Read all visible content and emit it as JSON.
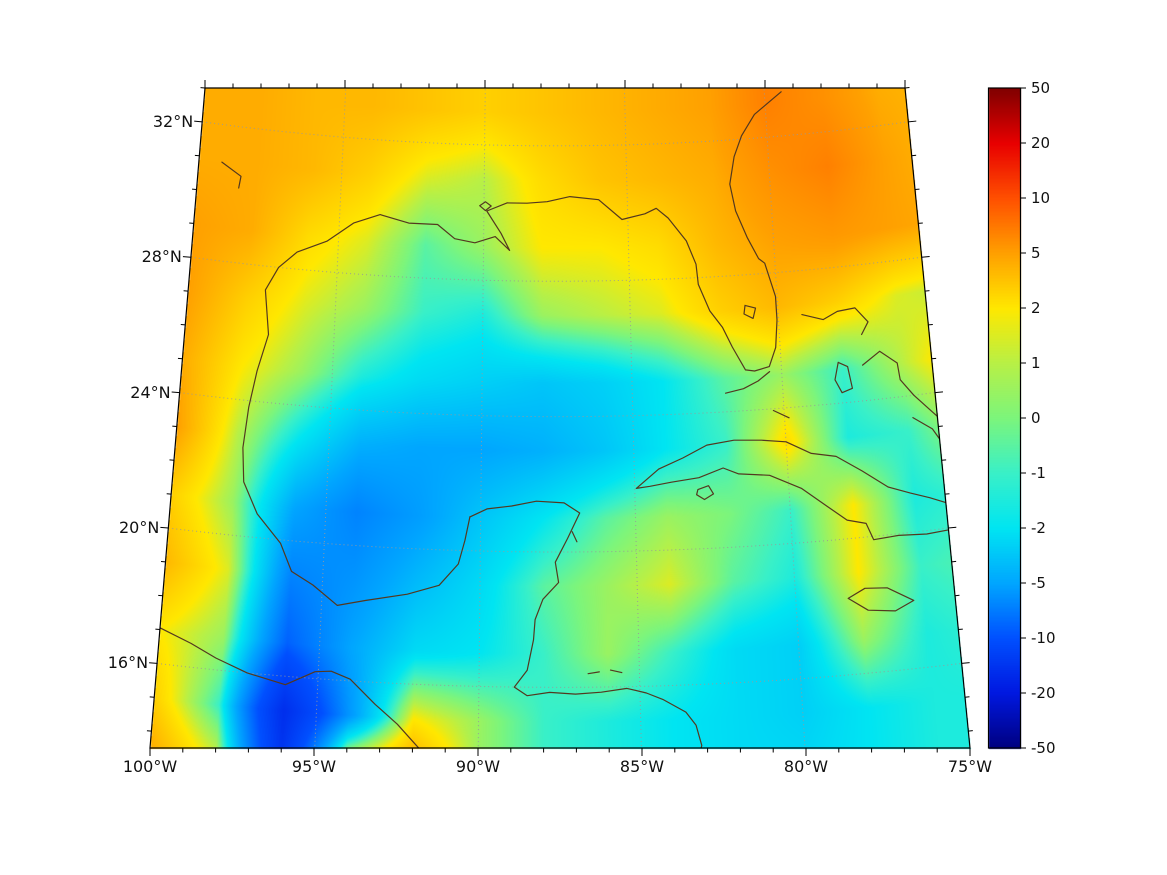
{
  "figure": {
    "background": "#ffffff",
    "axes": {
      "x_ticks": {
        "labels": [
          "100°W",
          "95°W",
          "90°W",
          "85°W",
          "80°W",
          "75°W"
        ],
        "lons": [
          -100,
          -95,
          -90,
          -85,
          -80,
          -75
        ]
      },
      "y_ticks": {
        "labels": [
          "32°N",
          "28°N",
          "24°N",
          "20°N",
          "16°N"
        ],
        "lats": [
          32,
          28,
          24,
          20,
          16
        ]
      }
    },
    "colorbar": {
      "tick_labels": [
        "50",
        "20",
        "10",
        "5",
        "2",
        "1",
        "0",
        "-1",
        "-2",
        "-5",
        "-10",
        "-20",
        "-50"
      ],
      "tick_values": [
        50,
        20,
        10,
        5,
        2,
        1,
        0,
        -1,
        -2,
        -5,
        -10,
        -20,
        -50
      ]
    },
    "colors": {
      "coastline": "#53381f",
      "gridline": "#9a9a9a",
      "frame": "#000000",
      "label": "#111111"
    }
  },
  "chart_data": {
    "type": "heatmap",
    "region": "Gulf of Mexico and western Caribbean anomaly field",
    "projection": "conic-like trapezoid",
    "lon_range": [
      -100,
      -75
    ],
    "lat_range": [
      13.5,
      33
    ],
    "x_tick_lons": [
      -100,
      -95,
      -90,
      -85,
      -80,
      -75
    ],
    "y_tick_lats": [
      16,
      20,
      24,
      28,
      32
    ],
    "colormap": {
      "ticks": [
        -50,
        -20,
        -10,
        -5,
        -2,
        -1,
        0,
        1,
        2,
        5,
        10,
        20,
        50
      ],
      "colors": [
        "#000080",
        "#0018e0",
        "#0050ff",
        "#00a6ff",
        "#00e5f2",
        "#39f0c8",
        "#7cf57c",
        "#b8f046",
        "#ffe800",
        "#ffa000",
        "#ff5000",
        "#e80000",
        "#800000"
      ]
    },
    "grid_lons": [
      -100,
      -98,
      -96,
      -94,
      -92,
      -90,
      -88,
      -86,
      -84,
      -82,
      -80,
      -78,
      -76,
      -74
    ],
    "grid_lats": [
      33,
      31,
      29,
      27,
      25,
      23,
      21,
      19,
      17,
      15,
      13
    ],
    "values": [
      [
        4.5,
        4.5,
        4.0,
        4.0,
        3.5,
        3.0,
        3.5,
        4.0,
        4.5,
        5.0,
        7.0,
        6.0,
        4.5,
        4.0
      ],
      [
        4.5,
        4.5,
        4.0,
        3.0,
        1.5,
        1.0,
        2.5,
        3.5,
        4.0,
        4.5,
        6.0,
        7.0,
        5.0,
        4.0
      ],
      [
        5.0,
        4.5,
        2.5,
        1.5,
        -0.5,
        0.5,
        2.0,
        2.0,
        2.5,
        4.0,
        5.0,
        5.5,
        5.0,
        4.5
      ],
      [
        5.0,
        3.0,
        1.5,
        0.5,
        -1.0,
        -1.5,
        0.5,
        1.0,
        1.5,
        3.0,
        4.0,
        3.0,
        1.5,
        1.0
      ],
      [
        4.5,
        2.0,
        0.5,
        -1.5,
        -2.5,
        -3.0,
        -3.5,
        -3.0,
        -2.0,
        -0.5,
        0.5,
        -1.0,
        1.0,
        3.0
      ],
      [
        5.0,
        1.0,
        -2.0,
        -4.5,
        -5.0,
        -5.0,
        -4.5,
        -3.5,
        -2.0,
        -1.0,
        2.5,
        -1.5,
        -1.0,
        1.0
      ],
      [
        3.0,
        0.5,
        -5.0,
        -7.0,
        -5.5,
        -3.5,
        -2.0,
        -0.5,
        0.5,
        0.0,
        -1.0,
        2.0,
        -1.5,
        -1.0
      ],
      [
        4.0,
        1.5,
        -7.0,
        -6.0,
        -4.0,
        -2.5,
        -0.5,
        0.5,
        1.5,
        -0.5,
        -1.5,
        2.0,
        -1.0,
        -0.5
      ],
      [
        2.0,
        0.5,
        -9.0,
        -5.0,
        -2.5,
        -2.0,
        -1.0,
        0.5,
        -1.0,
        -2.5,
        -3.0,
        0.5,
        -1.5,
        -1.0
      ],
      [
        3.0,
        -1.0,
        -16.0,
        -6.0,
        2.0,
        0.5,
        -1.0,
        -1.5,
        -2.0,
        -2.5,
        -3.0,
        -2.0,
        -1.5,
        -1.5
      ],
      [
        5.0,
        2.0,
        -14.0,
        6.0,
        6.0,
        0.5,
        -1.0,
        -1.5,
        -2.0,
        -2.5,
        -2.5,
        -2.0,
        -1.5,
        -1.5
      ]
    ],
    "coastlines": [
      {
        "name": "gulf-and-atlantic-coast",
        "points": [
          [
            -90.35,
            21.0
          ],
          [
            -90.5,
            20.3
          ],
          [
            -90.7,
            19.6
          ],
          [
            -91.3,
            18.95
          ],
          [
            -92.3,
            18.65
          ],
          [
            -93.6,
            18.4
          ],
          [
            -94.5,
            18.2
          ],
          [
            -95.3,
            18.75
          ],
          [
            -96.0,
            19.1
          ],
          [
            -96.4,
            19.9
          ],
          [
            -97.2,
            20.7
          ],
          [
            -97.7,
            21.6
          ],
          [
            -97.8,
            22.6
          ],
          [
            -97.7,
            23.8
          ],
          [
            -97.5,
            24.9
          ],
          [
            -97.2,
            26.0
          ],
          [
            -97.4,
            27.3
          ],
          [
            -97.0,
            28.0
          ],
          [
            -96.4,
            28.5
          ],
          [
            -95.4,
            28.9
          ],
          [
            -94.5,
            29.5
          ],
          [
            -93.6,
            29.8
          ],
          [
            -92.6,
            29.6
          ],
          [
            -91.6,
            29.6
          ],
          [
            -91.0,
            29.2
          ],
          [
            -90.3,
            29.1
          ],
          [
            -89.6,
            29.3
          ],
          [
            -89.1,
            28.9
          ],
          [
            -89.4,
            29.4
          ],
          [
            -89.9,
            30.05
          ],
          [
            -89.2,
            30.3
          ],
          [
            -88.5,
            30.3
          ],
          [
            -87.8,
            30.35
          ],
          [
            -87.0,
            30.5
          ],
          [
            -86.0,
            30.4
          ],
          [
            -85.2,
            29.8
          ],
          [
            -84.4,
            29.95
          ],
          [
            -84.0,
            30.1
          ],
          [
            -83.6,
            29.8
          ],
          [
            -83.0,
            29.1
          ],
          [
            -82.7,
            28.4
          ],
          [
            -82.65,
            27.8
          ],
          [
            -82.3,
            27.0
          ],
          [
            -81.9,
            26.5
          ],
          [
            -81.6,
            25.9
          ],
          [
            -81.2,
            25.2
          ],
          [
            -80.9,
            25.15
          ],
          [
            -80.4,
            25.25
          ],
          [
            -80.15,
            25.8
          ],
          [
            -80.05,
            26.6
          ],
          [
            -80.05,
            27.3
          ],
          [
            -80.35,
            28.3
          ],
          [
            -80.55,
            28.45
          ],
          [
            -80.9,
            29.1
          ],
          [
            -81.25,
            29.9
          ],
          [
            -81.4,
            30.7
          ],
          [
            -81.2,
            31.5
          ],
          [
            -80.9,
            32.1
          ],
          [
            -80.4,
            32.7
          ],
          [
            -79.9,
            33.0
          ],
          [
            -79.4,
            33.3
          ]
        ]
      },
      {
        "name": "pacific-coast",
        "points": [
          [
            -100.0,
            17.05
          ],
          [
            -99.0,
            16.7
          ],
          [
            -98.2,
            16.35
          ],
          [
            -97.2,
            16.0
          ],
          [
            -96.0,
            15.75
          ],
          [
            -95.1,
            16.2
          ],
          [
            -94.6,
            16.25
          ],
          [
            -94.0,
            16.05
          ],
          [
            -93.2,
            15.35
          ],
          [
            -92.5,
            14.8
          ],
          [
            -92.0,
            14.3
          ],
          [
            -91.6,
            13.9
          ],
          [
            -91.4,
            13.4
          ]
        ]
      },
      {
        "name": "yucatan-belize-honduras",
        "points": [
          [
            -90.35,
            21.0
          ],
          [
            -89.8,
            21.25
          ],
          [
            -89.0,
            21.35
          ],
          [
            -88.2,
            21.5
          ],
          [
            -87.3,
            21.45
          ],
          [
            -86.8,
            21.15
          ],
          [
            -87.2,
            20.4
          ],
          [
            -87.6,
            19.7
          ],
          [
            -87.5,
            19.1
          ],
          [
            -88.0,
            18.6
          ],
          [
            -88.25,
            18.0
          ],
          [
            -88.3,
            17.4
          ],
          [
            -88.5,
            16.5
          ],
          [
            -88.9,
            16.0
          ],
          [
            -88.5,
            15.75
          ],
          [
            -87.8,
            15.85
          ],
          [
            -87.0,
            15.8
          ],
          [
            -86.2,
            15.85
          ],
          [
            -85.4,
            15.95
          ],
          [
            -84.8,
            15.8
          ],
          [
            -84.3,
            15.6
          ],
          [
            -83.6,
            15.2
          ],
          [
            -83.3,
            14.8
          ],
          [
            -83.15,
            14.2
          ],
          [
            -83.3,
            13.7
          ],
          [
            -83.3,
            13.3
          ]
        ]
      },
      {
        "name": "cuba",
        "points": [
          [
            -84.95,
            21.85
          ],
          [
            -84.2,
            22.4
          ],
          [
            -83.4,
            22.7
          ],
          [
            -82.6,
            23.05
          ],
          [
            -81.7,
            23.15
          ],
          [
            -80.8,
            23.1
          ],
          [
            -80.0,
            23.0
          ],
          [
            -79.2,
            22.6
          ],
          [
            -78.4,
            22.45
          ],
          [
            -77.6,
            21.95
          ],
          [
            -76.8,
            21.4
          ],
          [
            -76.1,
            21.15
          ],
          [
            -75.5,
            20.95
          ],
          [
            -75.0,
            20.75
          ],
          [
            -74.3,
            20.25
          ],
          [
            -74.9,
            19.95
          ],
          [
            -75.7,
            19.9
          ],
          [
            -76.6,
            19.95
          ],
          [
            -77.4,
            19.9
          ],
          [
            -77.6,
            20.4
          ],
          [
            -78.2,
            20.55
          ],
          [
            -78.8,
            21.0
          ],
          [
            -79.6,
            21.6
          ],
          [
            -80.6,
            22.05
          ],
          [
            -81.6,
            22.15
          ],
          [
            -82.1,
            22.35
          ],
          [
            -82.9,
            22.1
          ],
          [
            -83.8,
            22.0
          ],
          [
            -84.5,
            21.9
          ],
          [
            -84.95,
            21.85
          ]
        ]
      },
      {
        "name": "isle-of-youth",
        "points": [
          [
            -82.95,
            21.75
          ],
          [
            -82.6,
            21.85
          ],
          [
            -82.45,
            21.6
          ],
          [
            -82.75,
            21.45
          ],
          [
            -83.0,
            21.6
          ],
          [
            -82.95,
            21.75
          ]
        ]
      },
      {
        "name": "jamaica",
        "points": [
          [
            -78.35,
            18.25
          ],
          [
            -77.8,
            18.5
          ],
          [
            -77.1,
            18.45
          ],
          [
            -76.3,
            18.0
          ],
          [
            -76.9,
            17.75
          ],
          [
            -77.75,
            17.85
          ],
          [
            -78.35,
            18.25
          ]
        ]
      },
      {
        "name": "florida-keys",
        "points": [
          [
            -80.4,
            25.1
          ],
          [
            -80.8,
            24.85
          ],
          [
            -81.3,
            24.65
          ],
          [
            -81.9,
            24.55
          ]
        ]
      },
      {
        "name": "lake-okeechobee",
        "points": [
          [
            -81.1,
            27.1
          ],
          [
            -80.75,
            27.0
          ],
          [
            -80.85,
            26.7
          ],
          [
            -81.15,
            26.85
          ],
          [
            -81.1,
            27.1
          ]
        ]
      },
      {
        "name": "bahamas-north",
        "points": [
          [
            -79.2,
            26.7
          ],
          [
            -78.5,
            26.5
          ],
          [
            -78.0,
            26.7
          ],
          [
            -77.4,
            26.75
          ],
          [
            -77.0,
            26.3
          ],
          [
            -77.25,
            25.95
          ]
        ]
      },
      {
        "name": "andros",
        "points": [
          [
            -78.1,
            25.2
          ],
          [
            -77.8,
            25.05
          ],
          [
            -77.7,
            24.4
          ],
          [
            -78.05,
            24.3
          ],
          [
            -78.25,
            24.7
          ],
          [
            -78.1,
            25.2
          ]
        ]
      },
      {
        "name": "eleuthera-exuma",
        "points": [
          [
            -77.3,
            25.05
          ],
          [
            -76.7,
            25.4
          ],
          [
            -76.15,
            25.0
          ],
          [
            -76.1,
            24.5
          ],
          [
            -75.7,
            24.0
          ],
          [
            -75.2,
            23.5
          ],
          [
            -74.9,
            23.2
          ]
        ]
      },
      {
        "name": "long-island-bahamas",
        "points": [
          [
            -75.8,
            23.35
          ],
          [
            -75.2,
            22.95
          ],
          [
            -74.95,
            22.55
          ]
        ]
      },
      {
        "name": "cay-sal",
        "points": [
          [
            -80.35,
            23.95
          ],
          [
            -79.85,
            23.7
          ]
        ]
      },
      {
        "name": "lake-pontchartrain",
        "points": [
          [
            -90.15,
            30.2
          ],
          [
            -89.95,
            30.32
          ],
          [
            -89.75,
            30.2
          ],
          [
            -89.95,
            30.06
          ],
          [
            -90.15,
            30.2
          ]
        ]
      },
      {
        "name": "bay-islands-1",
        "points": [
          [
            -86.6,
            16.4
          ],
          [
            -86.25,
            16.45
          ]
        ]
      },
      {
        "name": "bay-islands-2",
        "points": [
          [
            -85.9,
            16.5
          ],
          [
            -85.55,
            16.42
          ]
        ]
      },
      {
        "name": "cozumel",
        "points": [
          [
            -87.05,
            20.6
          ],
          [
            -86.9,
            20.3
          ]
        ]
      },
      {
        "name": "texas-river",
        "points": [
          [
            -99.2,
            30.9
          ],
          [
            -98.5,
            30.55
          ],
          [
            -98.55,
            30.2
          ]
        ]
      },
      {
        "name": "haiti-tip",
        "points": [
          [
            -74.95,
            19.95
          ],
          [
            -74.6,
            19.65
          ],
          [
            -74.45,
            19.0
          ],
          [
            -74.6,
            18.45
          ],
          [
            -74.95,
            18.35
          ]
        ]
      }
    ]
  }
}
